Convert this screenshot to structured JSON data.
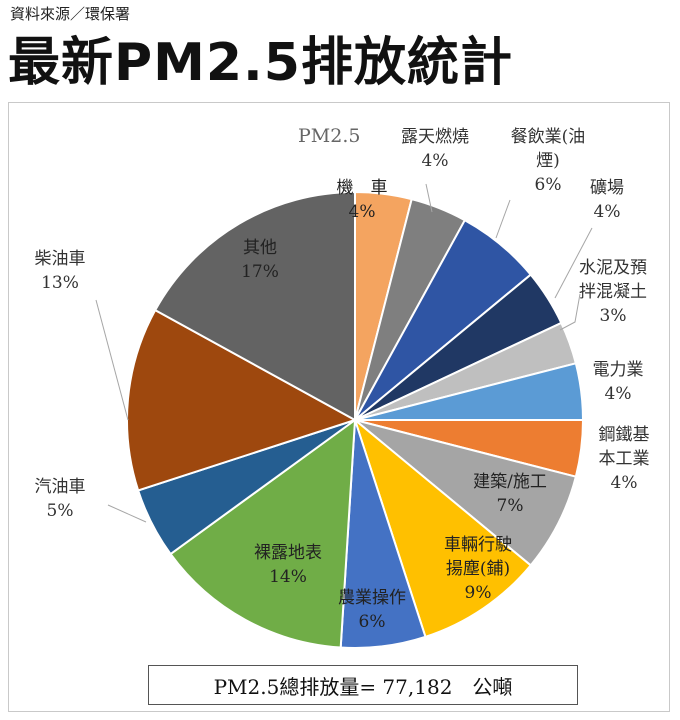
{
  "source": "資料來源／環保署",
  "title": "最新PM2.5排放統計",
  "chart_data": {
    "type": "pie",
    "series_label": "PM2.5",
    "slices": [
      {
        "label": [
          "機　車"
        ],
        "pct": "4%",
        "value": 4,
        "color": "#f4a460"
      },
      {
        "label": [
          "露天燃燒"
        ],
        "pct": "4%",
        "value": 4,
        "color": "#7f7f7f"
      },
      {
        "label": [
          "餐飲業(油",
          "煙)"
        ],
        "pct": "6%",
        "value": 6,
        "color": "#2f55a4"
      },
      {
        "label": [
          "礦場"
        ],
        "pct": "4%",
        "value": 4,
        "color": "#203864"
      },
      {
        "label": [
          "水泥及預",
          "拌混凝土"
        ],
        "pct": "3%",
        "value": 3,
        "color": "#bfbfbf"
      },
      {
        "label": [
          "電力業"
        ],
        "pct": "4%",
        "value": 4,
        "color": "#5b9bd5"
      },
      {
        "label": [
          "鋼鐵基",
          "本工業"
        ],
        "pct": "4%",
        "value": 4,
        "color": "#ed7d31"
      },
      {
        "label": [
          "建築/施工"
        ],
        "pct": "7%",
        "value": 7,
        "color": "#a5a5a5"
      },
      {
        "label": [
          "車輛行駛",
          "揚塵(鋪)"
        ],
        "pct": "9%",
        "value": 9,
        "color": "#ffc000"
      },
      {
        "label": [
          "農業操作"
        ],
        "pct": "6%",
        "value": 6,
        "color": "#4472c4"
      },
      {
        "label": [
          "裸露地表"
        ],
        "pct": "14%",
        "value": 14,
        "color": "#70ad47"
      },
      {
        "label": [
          "汽油車"
        ],
        "pct": "5%",
        "value": 5,
        "color": "#255e91"
      },
      {
        "label": [
          "柴油車"
        ],
        "pct": "13%",
        "value": 13,
        "color": "#9e480e"
      },
      {
        "label": [
          "其他"
        ],
        "pct": "17%",
        "value": 17,
        "color": "#636363"
      }
    ],
    "total_text": "PM2.5總排放量= 77,182　公噸"
  }
}
